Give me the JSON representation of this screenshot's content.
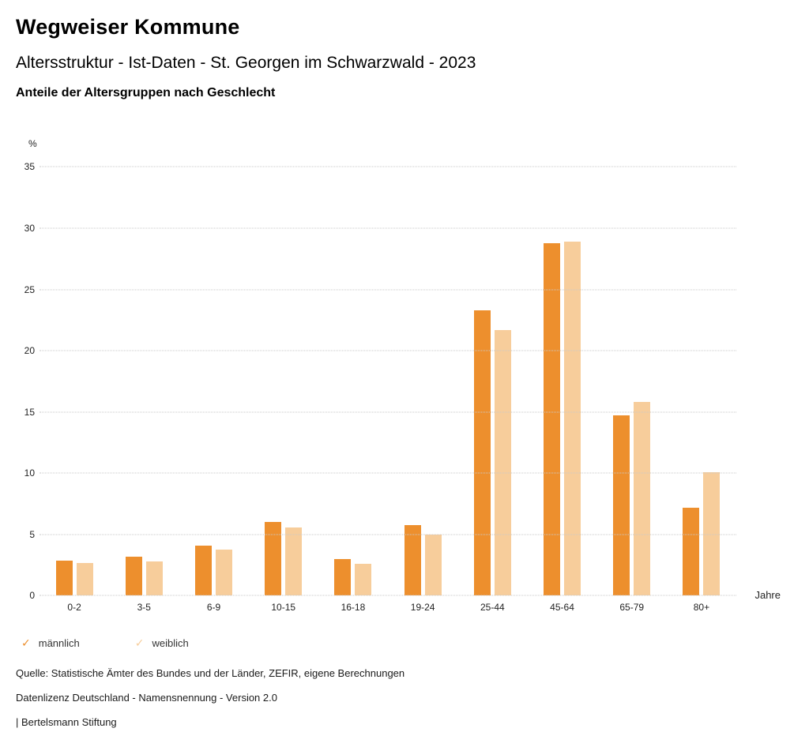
{
  "header": {
    "title": "Wegweiser Kommune",
    "subtitle": "Altersstruktur - Ist-Daten - St. Georgen im Schwarzwald - 2023",
    "subsubtitle": "Anteile der Altersgruppen nach Geschlecht"
  },
  "chart_data": {
    "type": "bar",
    "title": "Anteile der Altersgruppen nach Geschlecht",
    "categories": [
      "0-2",
      "3-5",
      "6-9",
      "10-15",
      "16-18",
      "19-24",
      "25-44",
      "45-64",
      "65-79",
      "80+"
    ],
    "series": [
      {
        "name": "männlich",
        "color": "#ED8F2D",
        "values": [
          2.9,
          3.2,
          4.1,
          6.0,
          3.0,
          5.8,
          23.3,
          28.8,
          14.7,
          7.2
        ]
      },
      {
        "name": "weiblich",
        "color": "#F7CD9B",
        "values": [
          2.7,
          2.8,
          3.8,
          5.6,
          2.6,
          5.0,
          21.7,
          28.9,
          15.8,
          10.1
        ]
      }
    ],
    "ylabel": "%",
    "xlabel": "Jahre",
    "ylim": [
      0,
      35
    ],
    "yticks": [
      0,
      5,
      10,
      15,
      20,
      25,
      30,
      35
    ],
    "grid": "horizontal-dotted",
    "legend_position": "bottom-left",
    "legend_check_glyph": "✓"
  },
  "footer": {
    "source": "Quelle: Statistische Ämter des Bundes und der Länder, ZEFIR, eigene Berechnungen",
    "license": "Datenlizenz Deutschland - Namensnennung - Version 2.0",
    "attribution": "| Bertelsmann Stiftung"
  }
}
